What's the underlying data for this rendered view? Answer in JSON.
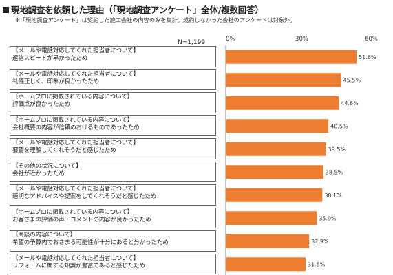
{
  "title": "現地調査を依頼した理由（「現地調査アンケート」全体/複数回答）",
  "note": "※「現地調査アンケート」は契約した施工会社の内容のみを集計。成約しなかった会社のアンケートは対象外。",
  "n_label": "N=1,199",
  "colors": {
    "bar": "#ED7D31",
    "axis": "#8c8c8c",
    "grid": "#d9d9d9"
  },
  "chart_data": {
    "type": "bar",
    "orientation": "horizontal",
    "title": "現地調査を依頼した理由（「現地調査アンケート」全体/複数回答）",
    "xlim": [
      0,
      60
    ],
    "x_ticks": [
      "0%",
      "30%",
      "60%"
    ],
    "categories": [
      [
        "【メールや電話対応してくれた担当者について】",
        "返信スピードが早かったため"
      ],
      [
        "【メールや電話対応してくれた担当者について】",
        "礼儀正しく、印象が良かったため"
      ],
      [
        "【ホームプロに掲載されている内容について】",
        "評価点が良かったため"
      ],
      [
        "【ホームプロに掲載されている内容について】",
        "会社概要の内容が信頼のおけるものであったため"
      ],
      [
        "【メールや電話対応してくれた担当者について】",
        "要望を理解してくれそうだと感じたため"
      ],
      [
        "【その他の状況について】",
        "会社が近かったため"
      ],
      [
        "【メールや電話対応してくれた担当者について】",
        "適切なアドバイスや提案をしてくれそうだと感じたため"
      ],
      [
        "【ホームプロに掲載されている内容について】",
        "お客さまの評価の声・コメントの内容が良かったため"
      ],
      [
        "【商談の内容について】",
        "希望の予算内でおさまる可能性が十分にあると分かったため"
      ],
      [
        "【メールや電話対応してくれた担当者について】",
        "リフォームに関する知識が豊富であると感じたため"
      ]
    ],
    "values": [
      51.6,
      45.5,
      44.6,
      40.5,
      39.5,
      38.5,
      38.1,
      35.9,
      32.9,
      31.5
    ],
    "value_labels": [
      "51.6%",
      "45.5%",
      "44.6%",
      "40.5%",
      "39.5%",
      "38.5%",
      "38.1%",
      "35.9%",
      "32.9%",
      "31.5%"
    ]
  }
}
